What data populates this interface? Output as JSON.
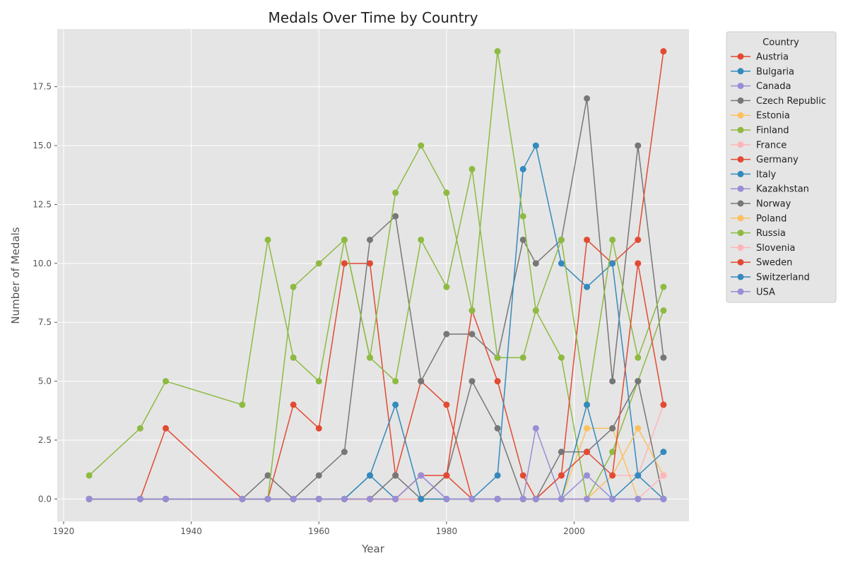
{
  "chart_data": {
    "type": "line",
    "title": "Medals Over Time by Country",
    "xlabel": "Year",
    "ylabel": "Number of Medals",
    "xlim": [
      1919,
      2018
    ],
    "ylim": [
      -0.95,
      19.95
    ],
    "xticks": [
      1920,
      1940,
      1960,
      1980,
      2000
    ],
    "yticks": [
      0.0,
      2.5,
      5.0,
      7.5,
      10.0,
      12.5,
      15.0,
      17.5
    ],
    "ytick_labels": [
      "0.0",
      "2.5",
      "5.0",
      "7.5",
      "10.0",
      "12.5",
      "15.0",
      "17.5"
    ],
    "grid": true,
    "legend": {
      "title": "Country",
      "placement": "outside right"
    },
    "x": [
      1924,
      1932,
      1936,
      1948,
      1952,
      1956,
      1960,
      1964,
      1968,
      1972,
      1976,
      1980,
      1984,
      1988,
      1992,
      1994,
      1998,
      2002,
      2006,
      2010,
      2014
    ],
    "series": [
      {
        "name": "Austria",
        "color": "#E24A33",
        "values": [
          0,
          0,
          3,
          0,
          0,
          4,
          3,
          10,
          10,
          1,
          5,
          4,
          0,
          0,
          0,
          0,
          0,
          0,
          0,
          0,
          0
        ]
      },
      {
        "name": "Bulgaria",
        "color": "#348ABD",
        "values": [
          0,
          0,
          0,
          0,
          0,
          0,
          0,
          0,
          0,
          0,
          0,
          0,
          0,
          0,
          0,
          0,
          0,
          0,
          0,
          0,
          0
        ]
      },
      {
        "name": "Canada",
        "color": "#988ED5",
        "values": [
          0,
          0,
          0,
          0,
          0,
          0,
          0,
          0,
          0,
          0,
          1,
          0,
          0,
          0,
          0,
          0,
          0,
          0,
          0,
          0,
          0
        ]
      },
      {
        "name": "Czech Republic",
        "color": "#777777",
        "values": [
          0,
          0,
          0,
          0,
          1,
          0,
          1,
          2,
          11,
          12,
          5,
          7,
          7,
          6,
          11,
          10,
          11,
          17,
          5,
          15,
          6
        ]
      },
      {
        "name": "Estonia",
        "color": "#FBC15E",
        "values": [
          0,
          0,
          0,
          0,
          0,
          0,
          0,
          0,
          0,
          0,
          0,
          0,
          0,
          0,
          0,
          0,
          0,
          3,
          3,
          0,
          0
        ]
      },
      {
        "name": "Finland",
        "color": "#8EBA42",
        "values": [
          1,
          3,
          5,
          4,
          11,
          6,
          5,
          11,
          6,
          5,
          11,
          9,
          14,
          6,
          6,
          8,
          6,
          0,
          2,
          5,
          8
        ]
      },
      {
        "name": "France",
        "color": "#FFB5B8",
        "values": [
          0,
          0,
          0,
          0,
          0,
          0,
          0,
          0,
          0,
          0,
          0,
          0,
          0,
          0,
          0,
          0,
          0,
          0,
          1,
          1,
          4
        ]
      },
      {
        "name": "Germany",
        "color": "#E24A33",
        "values": [
          0,
          0,
          0,
          0,
          0,
          0,
          0,
          0,
          0,
          0,
          0,
          1,
          8,
          5,
          1,
          0,
          1,
          11,
          10,
          11,
          19
        ]
      },
      {
        "name": "Italy",
        "color": "#348ABD",
        "values": [
          0,
          0,
          0,
          0,
          0,
          0,
          0,
          0,
          1,
          0,
          0,
          0,
          0,
          1,
          14,
          15,
          10,
          9,
          10,
          1,
          0
        ]
      },
      {
        "name": "Kazakhstan",
        "color": "#988ED5",
        "values": [
          0,
          0,
          0,
          0,
          0,
          0,
          0,
          0,
          0,
          0,
          0,
          0,
          0,
          0,
          0,
          3,
          0,
          1,
          0,
          0,
          0
        ]
      },
      {
        "name": "Norway",
        "color": "#777777",
        "values": [
          0,
          0,
          0,
          0,
          0,
          0,
          0,
          0,
          0,
          1,
          0,
          1,
          5,
          3,
          0,
          0,
          2,
          2,
          3,
          5,
          0
        ]
      },
      {
        "name": "Poland",
        "color": "#FBC15E",
        "values": [
          0,
          0,
          0,
          0,
          0,
          0,
          0,
          0,
          0,
          0,
          0,
          0,
          0,
          0,
          0,
          0,
          0,
          0,
          1,
          3,
          1
        ]
      },
      {
        "name": "Russia",
        "color": "#8EBA42",
        "values": [
          0,
          0,
          0,
          0,
          0,
          9,
          10,
          11,
          6,
          13,
          15,
          13,
          8,
          19,
          12,
          8,
          11,
          4,
          11,
          6,
          9
        ]
      },
      {
        "name": "Slovenia",
        "color": "#FFB5B8",
        "values": [
          0,
          0,
          0,
          0,
          0,
          0,
          0,
          0,
          0,
          0,
          0,
          0,
          0,
          0,
          0,
          0,
          0,
          0,
          0,
          0,
          1
        ]
      },
      {
        "name": "Sweden",
        "color": "#E24A33",
        "values": [
          0,
          0,
          0,
          0,
          0,
          0,
          0,
          0,
          0,
          0,
          1,
          1,
          0,
          0,
          0,
          0,
          1,
          2,
          1,
          10,
          4
        ]
      },
      {
        "name": "Switzerland",
        "color": "#348ABD",
        "values": [
          0,
          0,
          0,
          0,
          0,
          0,
          0,
          0,
          1,
          4,
          0,
          0,
          0,
          0,
          0,
          0,
          0,
          4,
          0,
          1,
          2
        ]
      },
      {
        "name": "USA",
        "color": "#988ED5",
        "values": [
          0,
          0,
          0,
          0,
          0,
          0,
          0,
          0,
          0,
          0,
          1,
          0,
          0,
          0,
          0,
          0,
          0,
          0,
          0,
          0,
          0
        ]
      }
    ]
  }
}
